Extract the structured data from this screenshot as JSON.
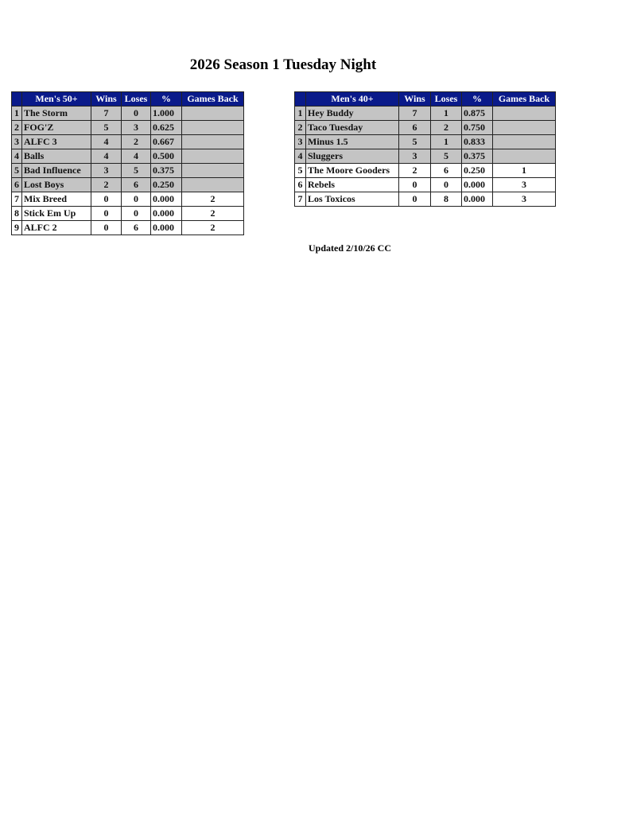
{
  "title": "2026 Season 1 Tuesday Night",
  "updated": "Updated 2/10/26 CC",
  "colors": {
    "header": "#0a1a8a",
    "highlight_rows": "#c4c4c4"
  },
  "tables": [
    {
      "division": "Men's 50+",
      "columns": [
        "Wins",
        "Loses",
        "%",
        "Games Back"
      ],
      "rows": [
        {
          "rank": "1",
          "team": "The Storm",
          "wins": "7",
          "loses": "0",
          "pct": "1.000",
          "gb": "",
          "highlight": true
        },
        {
          "rank": "2",
          "team": "FOG'Z",
          "wins": "5",
          "loses": "3",
          "pct": "0.625",
          "gb": "",
          "highlight": true
        },
        {
          "rank": "3",
          "team": "ALFC 3",
          "wins": "4",
          "loses": "2",
          "pct": "0.667",
          "gb": "",
          "highlight": true
        },
        {
          "rank": "4",
          "team": "Balls",
          "wins": "4",
          "loses": "4",
          "pct": "0.500",
          "gb": "",
          "highlight": true
        },
        {
          "rank": "5",
          "team": "Bad Influence",
          "wins": "3",
          "loses": "5",
          "pct": "0.375",
          "gb": "",
          "highlight": true
        },
        {
          "rank": "6",
          "team": "Lost Boys",
          "wins": "2",
          "loses": "6",
          "pct": "0.250",
          "gb": "",
          "highlight": true
        },
        {
          "rank": "7",
          "team": "Mix Breed",
          "wins": "0",
          "loses": "0",
          "pct": "0.000",
          "gb": "2",
          "highlight": false
        },
        {
          "rank": "8",
          "team": "Stick Em Up",
          "wins": "0",
          "loses": "0",
          "pct": "0.000",
          "gb": "2",
          "highlight": false
        },
        {
          "rank": "9",
          "team": "ALFC 2",
          "wins": "0",
          "loses": "6",
          "pct": "0.000",
          "gb": "2",
          "highlight": false
        }
      ]
    },
    {
      "division": "Men's 40+",
      "columns": [
        "Wins",
        "Loses",
        "%",
        "Games Back"
      ],
      "rows": [
        {
          "rank": "1",
          "team": "Hey Buddy",
          "wins": "7",
          "loses": "1",
          "pct": "0.875",
          "gb": "",
          "highlight": true
        },
        {
          "rank": "2",
          "team": "Taco Tuesday",
          "wins": "6",
          "loses": "2",
          "pct": "0.750",
          "gb": "",
          "highlight": true
        },
        {
          "rank": "3",
          "team": "Minus 1.5",
          "wins": "5",
          "loses": "1",
          "pct": "0.833",
          "gb": "",
          "highlight": true
        },
        {
          "rank": "4",
          "team": "Sluggers",
          "wins": "3",
          "loses": "5",
          "pct": "0.375",
          "gb": "",
          "highlight": true
        },
        {
          "rank": "5",
          "team": "The Moore Gooders",
          "wins": "2",
          "loses": "6",
          "pct": "0.250",
          "gb": "1",
          "highlight": false
        },
        {
          "rank": "6",
          "team": "Rebels",
          "wins": "0",
          "loses": "0",
          "pct": "0.000",
          "gb": "3",
          "highlight": false
        },
        {
          "rank": "7",
          "team": "Los Toxicos",
          "wins": "0",
          "loses": "8",
          "pct": "0.000",
          "gb": "3",
          "highlight": false
        }
      ]
    }
  ]
}
